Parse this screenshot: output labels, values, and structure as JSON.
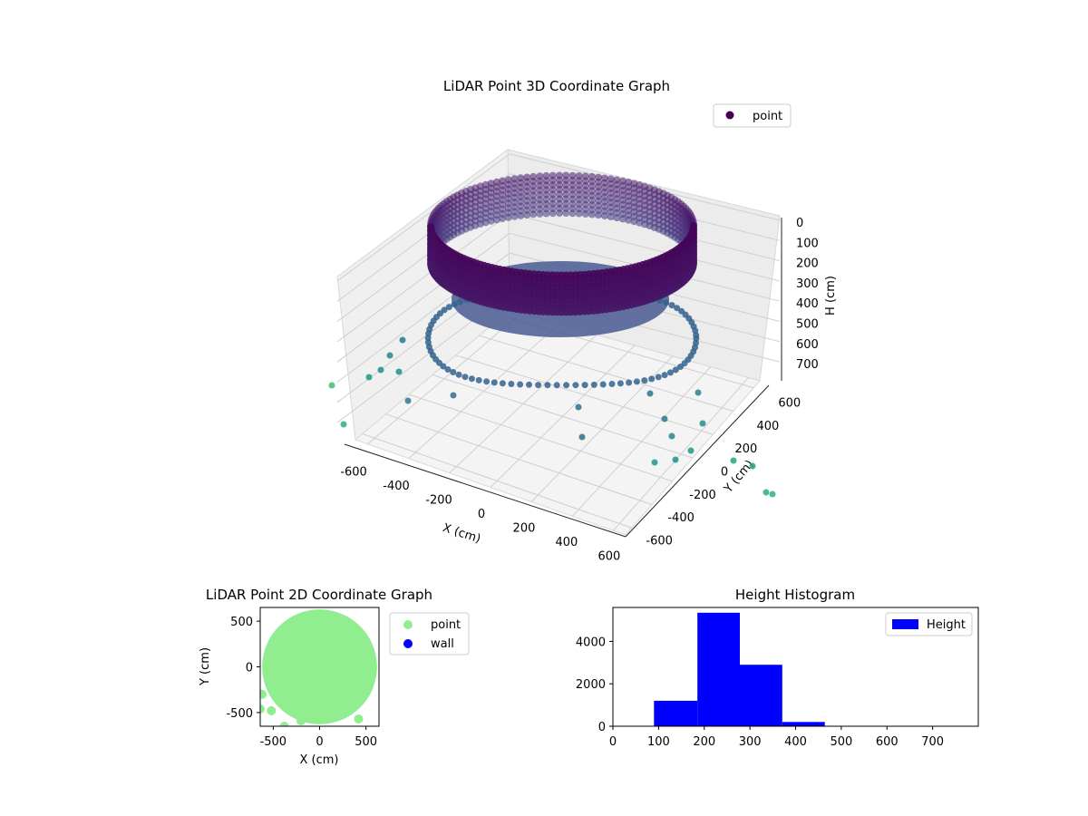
{
  "chart_data": [
    {
      "type": "scatter",
      "projection": "3d",
      "title": "LiDAR Point 3D Coordinate Graph",
      "xlabel": "X (cm)",
      "ylabel": "Y (cm)",
      "zlabel": "H (cm)",
      "xlim": [
        -650,
        650
      ],
      "ylim": [
        -650,
        650
      ],
      "zlim": [
        780,
        0
      ],
      "x_ticks": [
        "-600",
        "-400",
        "-200",
        "0",
        "200",
        "400",
        "600"
      ],
      "y_ticks": [
        "-600",
        "-400",
        "-200",
        "0",
        "200",
        "400",
        "600"
      ],
      "z_ticks": [
        "0",
        "100",
        "200",
        "300",
        "400",
        "500",
        "600",
        "700"
      ],
      "legend": [
        {
          "name": "point",
          "color": "#440154"
        }
      ],
      "legend_position": "upper-right",
      "colormap": "viridis",
      "grid": true,
      "series": [
        {
          "name": "point",
          "description_values": {
            "radius_cm": 580,
            "height_range_cm": [
              90,
              780
            ]
          }
        }
      ]
    },
    {
      "type": "scatter",
      "title": "LiDAR Point 2D Coordinate Graph",
      "xlabel": "X (cm)",
      "ylabel": "Y (cm)",
      "xlim": [
        -640,
        640
      ],
      "ylim": [
        -650,
        650
      ],
      "x_ticks": [
        "-500",
        "0",
        "500"
      ],
      "y_ticks": [
        "500",
        "0",
        "-500"
      ],
      "legend": [
        {
          "name": "point",
          "color": "#90ee90"
        },
        {
          "name": "wall",
          "color": "#0000ff"
        }
      ],
      "legend_position": "outside-right",
      "outliers": [
        [
          -620,
          -300
        ],
        [
          -640,
          -460
        ],
        [
          -520,
          -480
        ],
        [
          -380,
          -650
        ],
        [
          -200,
          -590
        ],
        [
          420,
          -570
        ]
      ]
    },
    {
      "type": "bar",
      "subtype": "histogram",
      "title": "Height Histogram",
      "xlim": [
        0,
        800
      ],
      "ylim": [
        0,
        5600
      ],
      "x_ticks": [
        "0",
        "100",
        "200",
        "300",
        "400",
        "500",
        "600",
        "700"
      ],
      "y_ticks": [
        "0",
        "2000",
        "4000"
      ],
      "legend": [
        {
          "name": "Height",
          "color": "#0000ff"
        }
      ],
      "legend_position": "upper-right",
      "bins": [
        {
          "start": 90,
          "end": 185,
          "count": 1200
        },
        {
          "start": 185,
          "end": 278,
          "count": 5350
        },
        {
          "start": 278,
          "end": 371,
          "count": 2900
        },
        {
          "start": 371,
          "end": 464,
          "count": 200
        },
        {
          "start": 464,
          "end": 557,
          "count": 8
        },
        {
          "start": 557,
          "end": 650,
          "count": 5
        },
        {
          "start": 650,
          "end": 743,
          "count": 3
        }
      ]
    }
  ]
}
